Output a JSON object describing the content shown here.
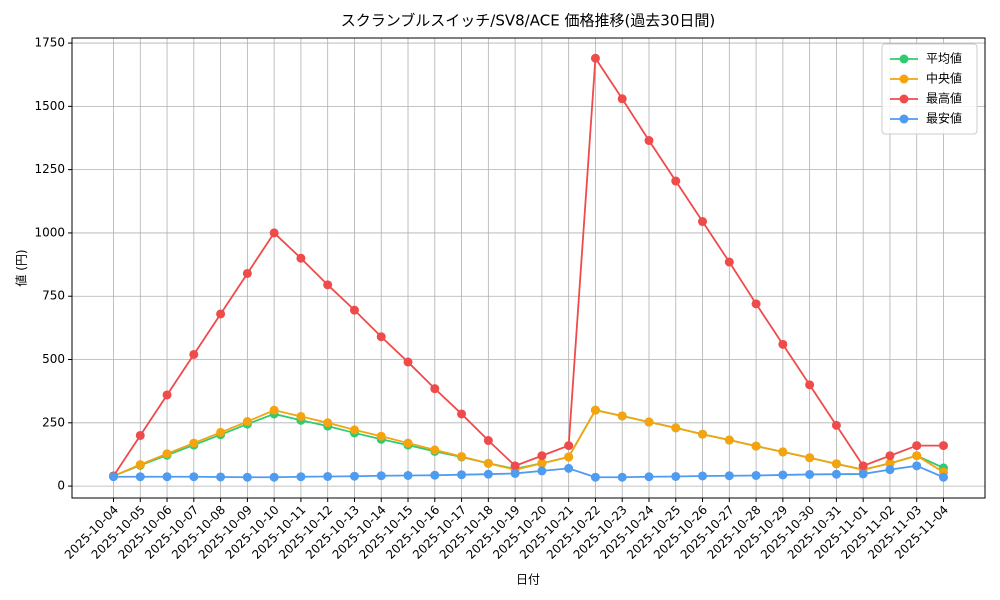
{
  "chart_data": {
    "type": "line",
    "title": "スクランブルスイッチ/SV8/ACE 価格推移(過去30日間)",
    "x_label": "日付",
    "y_label": "値 (円)",
    "categories": [
      "2025-10-04",
      "2025-10-05",
      "2025-10-06",
      "2025-10-07",
      "2025-10-08",
      "2025-10-09",
      "2025-10-10",
      "2025-10-11",
      "2025-10-12",
      "2025-10-13",
      "2025-10-14",
      "2025-10-15",
      "2025-10-16",
      "2025-10-17",
      "2025-10-18",
      "2025-10-19",
      "2025-10-20",
      "2025-10-21",
      "2025-10-22",
      "2025-10-23",
      "2025-10-24",
      "2025-10-25",
      "2025-10-26",
      "2025-10-27",
      "2025-10-28",
      "2025-10-29",
      "2025-10-30",
      "2025-10-31",
      "2025-11-01",
      "2025-11-02",
      "2025-11-03",
      "2025-11-04"
    ],
    "series": [
      {
        "name": "平均値",
        "color": "#2ecc71",
        "values": [
          40,
          82,
          122,
          162,
          203,
          245,
          285,
          260,
          237,
          210,
          185,
          162,
          137,
          115,
          90,
          68,
          90,
          115,
          300,
          277,
          253,
          230,
          205,
          182,
          158,
          135,
          112,
          88,
          65,
          90,
          120,
          72
        ]
      },
      {
        "name": "中央値",
        "color": "#f5a30f",
        "values": [
          40,
          85,
          128,
          170,
          212,
          255,
          300,
          275,
          250,
          222,
          197,
          170,
          143,
          117,
          90,
          65,
          90,
          115,
          300,
          277,
          253,
          230,
          205,
          182,
          158,
          135,
          112,
          88,
          65,
          90,
          120,
          55
        ]
      },
      {
        "name": "最高値",
        "color": "#ef4b4b",
        "values": [
          40,
          200,
          360,
          520,
          680,
          840,
          1000,
          900,
          795,
          695,
          590,
          490,
          385,
          285,
          180,
          80,
          120,
          160,
          1690,
          1530,
          1365,
          1205,
          1045,
          885,
          720,
          560,
          400,
          240,
          80,
          120,
          160,
          160
        ]
      },
      {
        "name": "最安値",
        "color": "#4f9bf0",
        "values": [
          37,
          37,
          37,
          37,
          36,
          35,
          35,
          37,
          38,
          39,
          41,
          42,
          43,
          45,
          47,
          50,
          60,
          70,
          35,
          35,
          37,
          38,
          40,
          41,
          42,
          44,
          46,
          47,
          48,
          65,
          80,
          35
        ]
      }
    ],
    "ylim": [
      -47,
      1770
    ],
    "yticks": [
      0,
      250,
      500,
      750,
      1000,
      1250,
      1500,
      1750
    ],
    "grid": true,
    "legend": "upper right"
  }
}
